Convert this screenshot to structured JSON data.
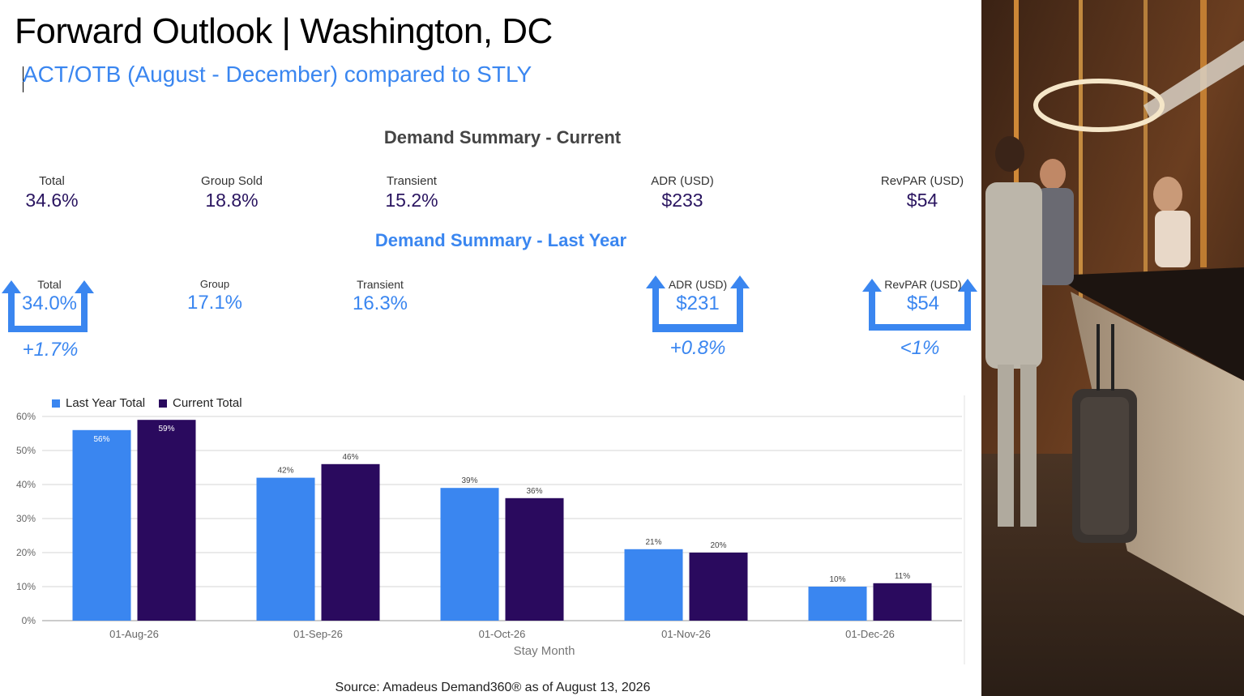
{
  "title": "Forward Outlook | Washington, DC",
  "subtitle": "ACT/OTB (August - December) compared to STLY",
  "current": {
    "title": "Demand Summary - Current",
    "metrics": [
      {
        "label": "Total",
        "value": "34.6%"
      },
      {
        "label": "Group Sold",
        "value": "18.8%"
      },
      {
        "label": "Transient",
        "value": "15.2%"
      },
      {
        "label": "ADR (USD)",
        "value": "$233"
      },
      {
        "label": "RevPAR (USD)",
        "value": "$54"
      }
    ]
  },
  "last_year": {
    "title": "Demand Summary - Last Year",
    "metrics": [
      {
        "label": "Total",
        "value": "34.0%",
        "change": "+1.7%"
      },
      {
        "label": "Group",
        "value": "17.1%"
      },
      {
        "label": "Transient",
        "value": "16.3%"
      },
      {
        "label": "ADR (USD)",
        "value": "$231",
        "change": "+0.8%"
      },
      {
        "label": "RevPAR (USD)",
        "value": "$54",
        "change": "<1%"
      }
    ]
  },
  "colors": {
    "last_year": "#3a86f0",
    "current": "#2a0a5e",
    "accent": "#3a86f0"
  },
  "chart_data": {
    "type": "bar",
    "categories": [
      "01-Aug-26",
      "01-Sep-26",
      "01-Oct-26",
      "01-Nov-26",
      "01-Dec-26"
    ],
    "series": [
      {
        "name": "Last Year Total",
        "values": [
          56,
          42,
          39,
          21,
          10
        ],
        "labels": [
          "56%",
          "42%",
          "39%",
          "21%",
          "10%"
        ]
      },
      {
        "name": "Current Total",
        "values": [
          59,
          46,
          36,
          20,
          11
        ],
        "labels": [
          "59%",
          "46%",
          "36%",
          "20%",
          "11%"
        ]
      }
    ],
    "xlabel": "Stay Month",
    "ylabel": "",
    "ylim": [
      0,
      60
    ],
    "yticks": [
      "0%",
      "10%",
      "20%",
      "30%",
      "40%",
      "50%",
      "60%"
    ],
    "grid": true,
    "legend": "top-left"
  },
  "source": "Source: Amadeus Demand360® as of August 13, 2026"
}
